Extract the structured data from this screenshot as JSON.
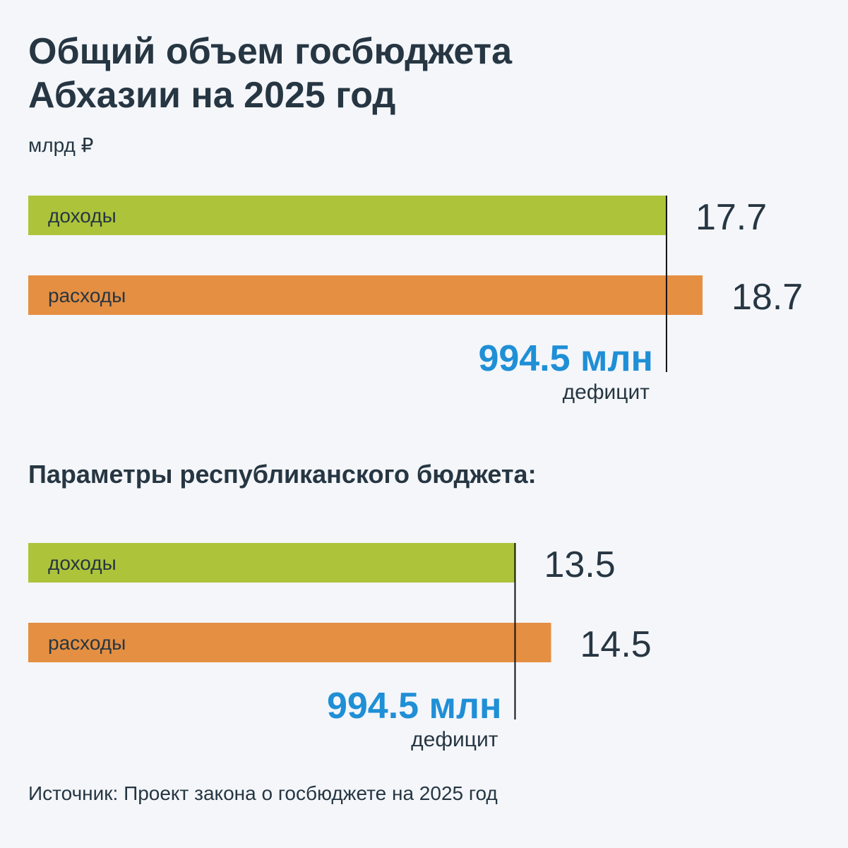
{
  "title": "Общий объем госбюджета Абхазии на 2025 год",
  "title_lines": [
    "Общий объем госбюджета",
    "Абхазии на 2025 год"
  ],
  "subtitle": "млрд ₽",
  "source": "Источник: Проект закона о госбюджете на 2025 год",
  "chart_data": [
    {
      "type": "bar",
      "orientation": "horizontal",
      "categories": [
        "доходы",
        "расходы"
      ],
      "values": [
        17.7,
        18.7
      ],
      "colors": [
        "#adc43a",
        "#e58f42"
      ],
      "annotation": {
        "text": "994.5 млн",
        "label": "дефицит",
        "color": "#1f8fd6"
      }
    },
    {
      "type": "bar",
      "orientation": "horizontal",
      "title": "Параметры республиканского бюджета:",
      "categories": [
        "доходы",
        "расходы"
      ],
      "values": [
        13.5,
        14.5
      ],
      "colors": [
        "#adc43a",
        "#e58f42"
      ],
      "annotation": {
        "text": "994.5 млн",
        "label": "дефицит",
        "color": "#1f8fd6"
      }
    }
  ]
}
